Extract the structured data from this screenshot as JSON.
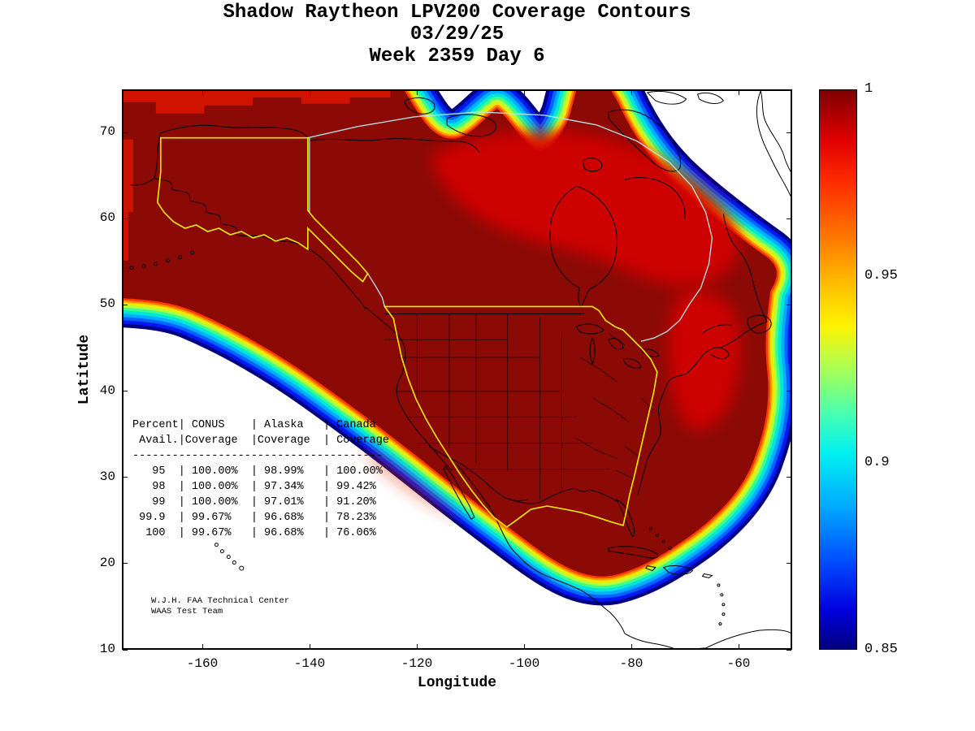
{
  "title": {
    "line1": "Shadow Raytheon LPV200 Coverage Contours",
    "line2": "03/29/25",
    "line3": "Week 2359 Day 6"
  },
  "axes": {
    "x_label": "Longitude",
    "y_label": "Latitude",
    "x_ticks": [
      -160,
      -140,
      -120,
      -100,
      -80,
      -60
    ],
    "y_ticks": [
      70,
      60,
      50,
      40,
      30,
      20,
      10
    ],
    "x_range": [
      -175,
      -50
    ],
    "y_range": [
      10,
      75
    ]
  },
  "colorbar": {
    "tick_labels": [
      "1",
      "0.95",
      "0.9",
      "0.85"
    ],
    "tick_values": [
      1,
      0.95,
      0.9,
      0.85
    ],
    "min": 0.85,
    "max": 1,
    "colormap": "jet",
    "top_color": "#7f0000",
    "bottom_color": "#000082"
  },
  "availability_table": {
    "columns": [
      "Percent Avail.",
      "CONUS Coverage",
      "Alaska Coverage",
      "Canada Coverage"
    ],
    "header_lines": [
      "Percent| CONUS    | Alaska   | Canada",
      " Avail.|Coverage  |Coverage  | Coverage"
    ],
    "rows": [
      [
        "95",
        "100.00%",
        "98.99%",
        "100.00%"
      ],
      [
        "98",
        "100.00%",
        "97.34%",
        "99.42%"
      ],
      [
        "99",
        "100.00%",
        "97.01%",
        "91.20%"
      ],
      [
        "99.9",
        "99.67%",
        "96.68%",
        "78.23%"
      ],
      [
        "100",
        "99.67%",
        "96.68%",
        "76.06%"
      ]
    ]
  },
  "annotation": {
    "line1": "W.J.H. FAA Technical Center",
    "line2": "WAAS Test Team"
  },
  "map_colors": {
    "full_coverage_fill": "#8c0a06",
    "service_boundary_yellow": "#f0f000",
    "canada_boundary": "#b8e8e8"
  },
  "chart_data": {
    "type": "heatmap",
    "title": "Shadow Raytheon LPV200 Coverage Contours",
    "subtitle": [
      "03/29/25",
      "Week 2359 Day 6"
    ],
    "xlabel": "Longitude",
    "ylabel": "Latitude",
    "xlim": [
      -175,
      -50
    ],
    "ylim": [
      10,
      75
    ],
    "x_ticks": [
      -160,
      -140,
      -120,
      -100,
      -80,
      -60
    ],
    "y_ticks": [
      70,
      60,
      50,
      40,
      30,
      20,
      10
    ],
    "grid": false,
    "colorbar": {
      "range": [
        0.85,
        1.0
      ],
      "tick_values": [
        1,
        0.95,
        0.9,
        0.85
      ],
      "colormap": "jet",
      "position": "right"
    },
    "availability_summary": {
      "columns": [
        "Percent Avail.",
        "CONUS Coverage",
        "Alaska Coverage",
        "Canada Coverage"
      ],
      "rows": [
        [
          95,
          "100.00%",
          "98.99%",
          "100.00%"
        ],
        [
          98,
          "100.00%",
          "97.34%",
          "99.42%"
        ],
        [
          99,
          "100.00%",
          "97.01%",
          "91.20%"
        ],
        [
          99.9,
          "99.67%",
          "96.68%",
          "78.23%"
        ],
        [
          100,
          "99.67%",
          "96.68%",
          "76.06%"
        ]
      ]
    },
    "credit": [
      "W.J.H. FAA Technical Center",
      "WAAS Test Team"
    ]
  }
}
